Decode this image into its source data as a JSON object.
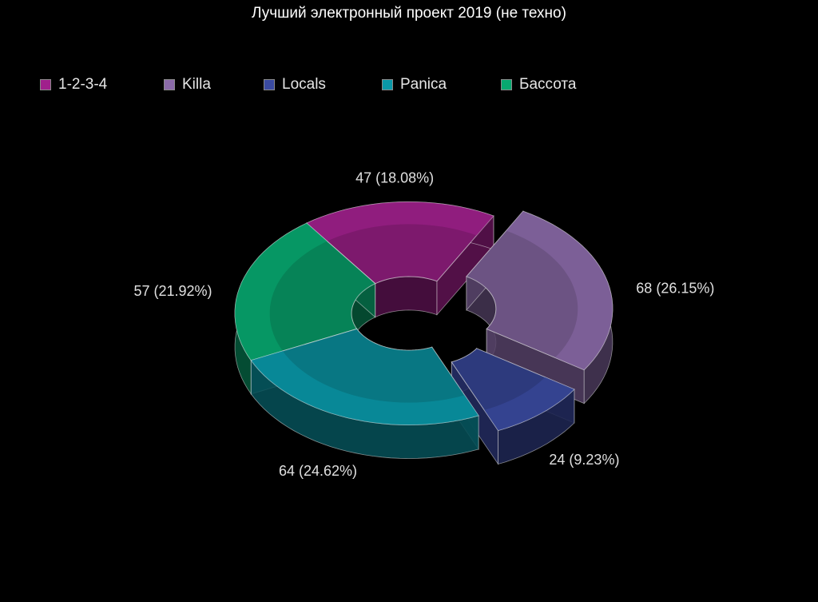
{
  "chart_data": {
    "type": "pie",
    "title": "Лучший электронный проект 2019 (не техно)",
    "legend_position": "top",
    "style": "3d-donut",
    "categories": [
      "1-2-3-4",
      "Killa",
      "Locals",
      "Panica",
      "Бассота"
    ],
    "values": [
      47,
      68,
      24,
      64,
      57
    ],
    "percent_labels": [
      "18.08%",
      "26.15%",
      "9.23%",
      "24.62%",
      "21.92%"
    ],
    "data_labels": [
      "47 (18.08%)",
      "68 (26.15%)",
      "24 (9.23%)",
      "64 (24.62%)",
      "57 (21.92%)"
    ],
    "exploded": [
      "Killa",
      "Locals"
    ],
    "colors": [
      "#a0208c",
      "#8a6aa8",
      "#3a4aa0",
      "#0a98a8",
      "#08a870"
    ]
  }
}
